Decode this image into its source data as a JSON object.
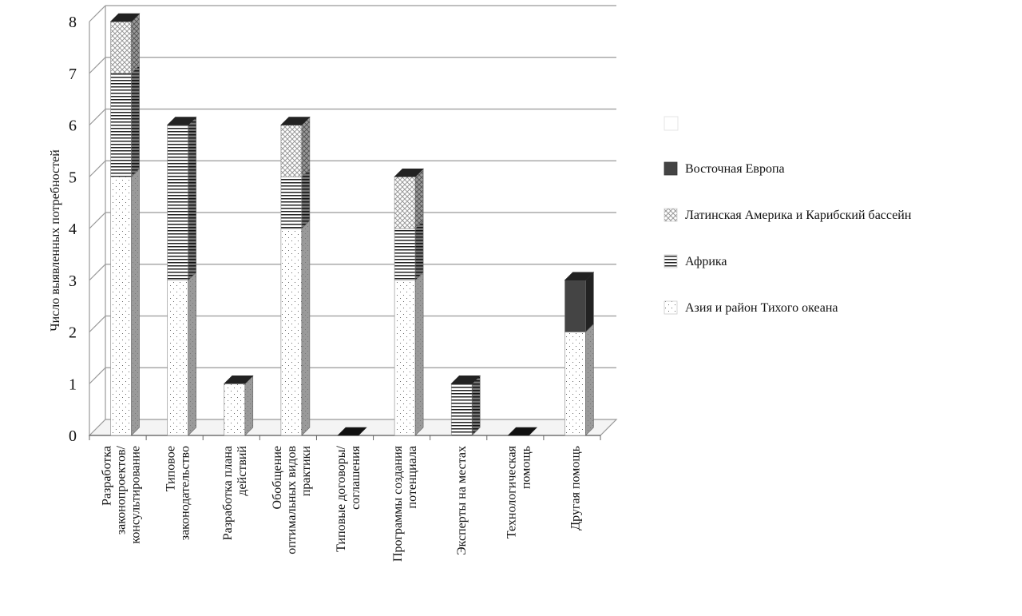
{
  "chart_data": {
    "type": "bar",
    "stacked": true,
    "three_d": true,
    "ylabel": "Число выявленных потребностей",
    "xlabel": "",
    "ylim": [
      0,
      8
    ],
    "y_ticks": [
      "0",
      "1",
      "2",
      "3",
      "4",
      "5",
      "6",
      "7",
      "8"
    ],
    "grid": true,
    "legend_position": "right",
    "categories": [
      "Разработка законопроектов/ консультирование",
      "Типовое законодательство",
      "Разработка плана действий",
      "Обобщение оптимальных видов практики",
      "Типовые договоры/ соглашения",
      "Программы создания потенциала",
      "Эксперты на местах",
      "Технологическая помощь",
      "Другая помощь"
    ],
    "category_lines": [
      [
        "Разработка",
        "законопроектов/",
        "консультирование"
      ],
      [
        "Типовое",
        "законодательство"
      ],
      [
        "Разработка плана",
        "действий"
      ],
      [
        "Обобщение",
        "оптимальных видов",
        "практики"
      ],
      [
        "Типовые договоры/",
        "соглашения"
      ],
      [
        "Программы создания",
        "потенциала"
      ],
      [
        "Эксперты на местах"
      ],
      [
        "Технологическая",
        "помощь"
      ],
      [
        "Другая помощь"
      ]
    ],
    "series": [
      {
        "name": "Азия и район Тихого океана",
        "pattern": "dots",
        "values": [
          5,
          3,
          1,
          4,
          0,
          3,
          0,
          0,
          2
        ]
      },
      {
        "name": "Африка",
        "pattern": "horizontal-lines",
        "values": [
          2,
          3,
          0,
          1,
          0,
          1,
          1,
          0,
          0
        ]
      },
      {
        "name": "Латинская Америка и Карибский бассейн",
        "pattern": "crosshatch",
        "values": [
          1,
          0,
          0,
          1,
          0,
          1,
          0,
          0,
          0
        ]
      },
      {
        "name": "Восточная Европа",
        "pattern": "solid",
        "values": [
          0,
          0,
          0,
          0,
          0,
          0,
          0,
          0,
          1
        ]
      }
    ],
    "legend_order": [
      "Восточная Европа",
      "Латинская Америка и Карибский бассейн",
      "Африка",
      "Азия и район Тихого океана"
    ],
    "colors": {
      "solid": "#444444",
      "gridline": "#999999"
    }
  }
}
